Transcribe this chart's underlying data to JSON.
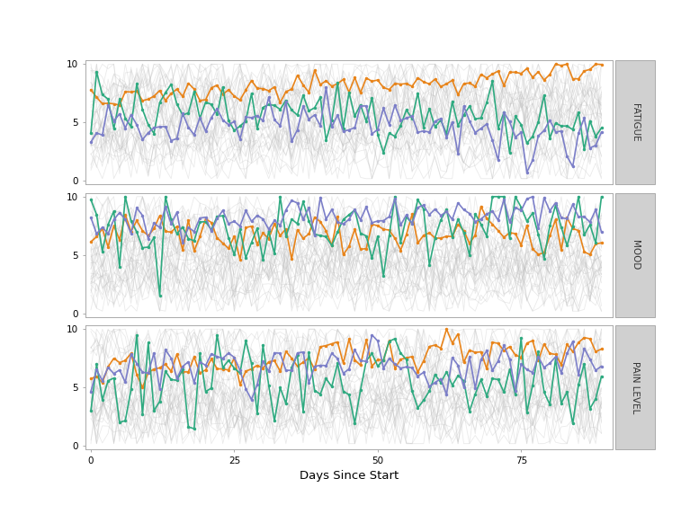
{
  "panels": [
    "FATIGUE",
    "MOOD",
    "PAIN LEVEL"
  ],
  "x_label": "Days Since Start",
  "x_ticks": [
    0,
    25,
    50,
    75
  ],
  "y_ticks": [
    0,
    5,
    10
  ],
  "y_lim": [
    -0.3,
    10.3
  ],
  "x_lim": [
    -1,
    91
  ],
  "highlighted_colors": [
    "#E8841A",
    "#2EAA80",
    "#7B7EC8"
  ],
  "background_color": "#FFFFFF",
  "panel_label_bg": "#D0D0D0",
  "n_days": 90,
  "line_alpha_bg": 0.3,
  "line_lw_bg": 0.6,
  "line_lw_fg": 1.2,
  "marker_size": 2.5
}
